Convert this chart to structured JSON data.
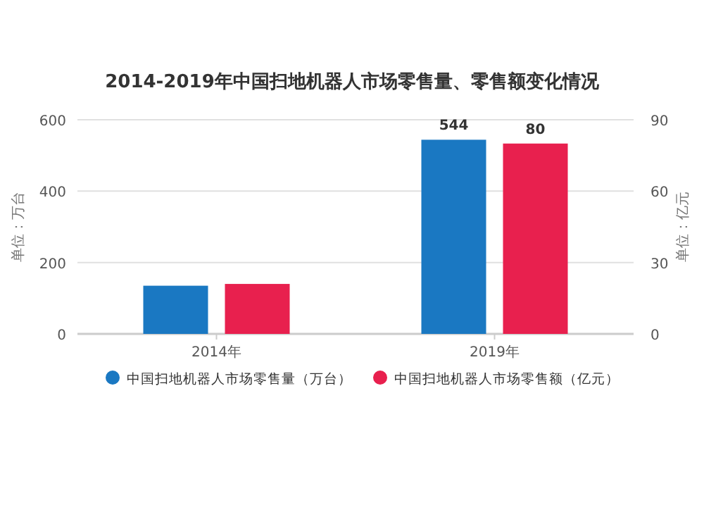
{
  "chart_data": {
    "type": "bar",
    "title": "2014-2019年中国扫地机器人市场零售量、零售额变化情况",
    "categories": [
      "2014年",
      "2019年"
    ],
    "series": [
      {
        "name": "中国扫地机器人市场零售量（万台）",
        "color": "#1a78c2",
        "values": [
          135,
          544
        ],
        "value_labels": [
          null,
          "544"
        ]
      },
      {
        "name": "中国扫地机器人市场零售额（亿元）",
        "color": "#e8204e",
        "values": [
          21,
          80
        ],
        "value_labels": [
          null,
          "80"
        ],
        "axis": "y2"
      }
    ],
    "ylabel": "单位：万台",
    "y2label": "单位：亿元",
    "ylim": [
      0,
      600
    ],
    "yticks": [
      0,
      200,
      400,
      600
    ],
    "y2lim": [
      0,
      90
    ],
    "y2ticks": [
      0,
      30,
      60,
      90
    ],
    "grid": "y",
    "legend": "bottom"
  }
}
